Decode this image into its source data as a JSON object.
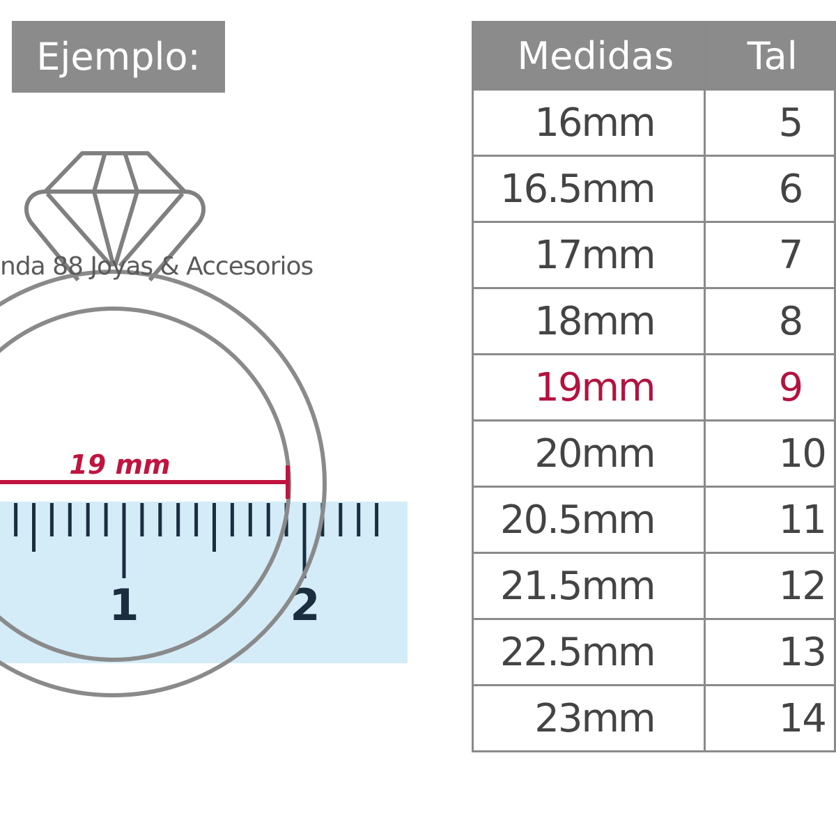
{
  "example_label": "Ejemplo:",
  "watermark": "nda 88 Joyas & Accesorios",
  "measurement_label": "19 mm",
  "ruler_labels": [
    "1",
    "2"
  ],
  "colors": {
    "header_bg": "#8b8b8b",
    "highlight": "#b3123f",
    "ruler_bg": "#d4ecf8",
    "ruler_ticks": "#1a2e3f"
  },
  "table": {
    "headers": [
      "Medidas",
      "Tal"
    ],
    "highlighted_row": 4,
    "rows": [
      {
        "medida": "16mm",
        "talla": "5"
      },
      {
        "medida": "16.5mm",
        "talla": "6"
      },
      {
        "medida": "17mm",
        "talla": "7"
      },
      {
        "medida": "18mm",
        "talla": "8"
      },
      {
        "medida": "19mm",
        "talla": "9"
      },
      {
        "medida": "20mm",
        "talla": "10"
      },
      {
        "medida": "20.5mm",
        "talla": "11"
      },
      {
        "medida": "21.5mm",
        "talla": "12"
      },
      {
        "medida": "22.5mm",
        "talla": "13"
      },
      {
        "medida": "23mm",
        "talla": "14"
      }
    ]
  }
}
